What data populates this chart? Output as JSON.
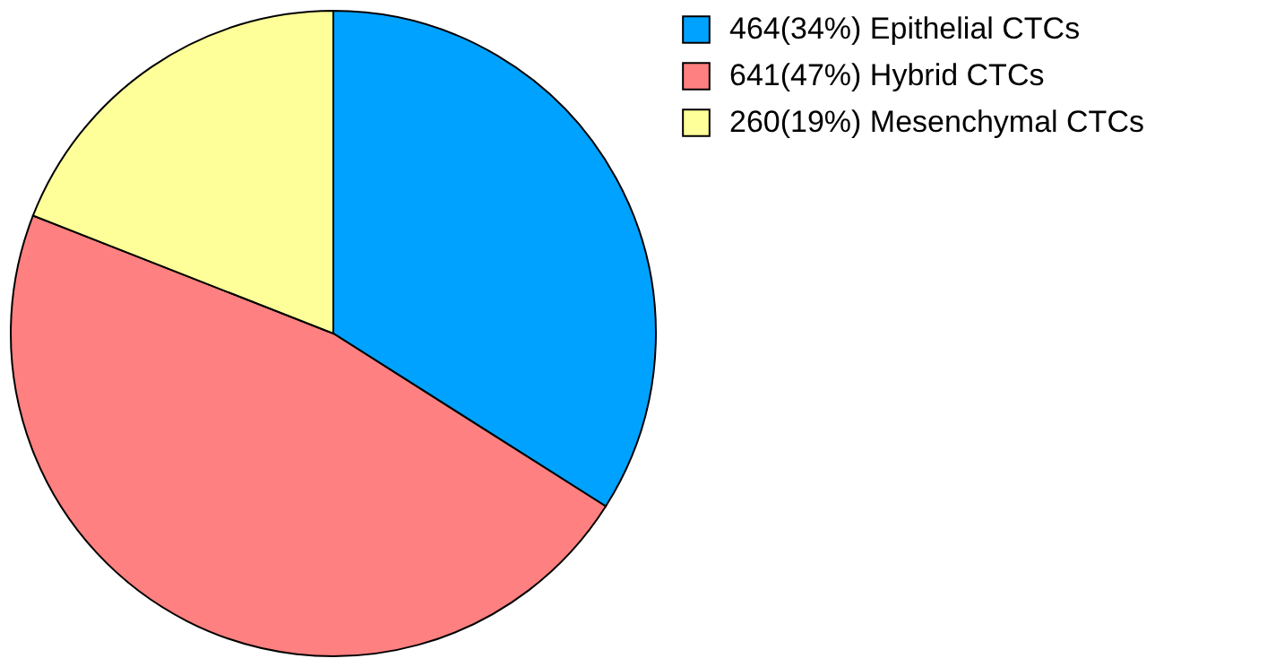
{
  "chart_data": {
    "type": "pie",
    "categories": [
      "464(34%) Epithelial CTCs",
      "641(47%) Hybrid CTCs",
      "260(19%) Mesenchymal CTCs"
    ],
    "values": [
      464,
      641,
      260
    ],
    "colors": [
      "#00a2ff",
      "#ff8080",
      "#ffff99"
    ],
    "legend": "top right"
  }
}
